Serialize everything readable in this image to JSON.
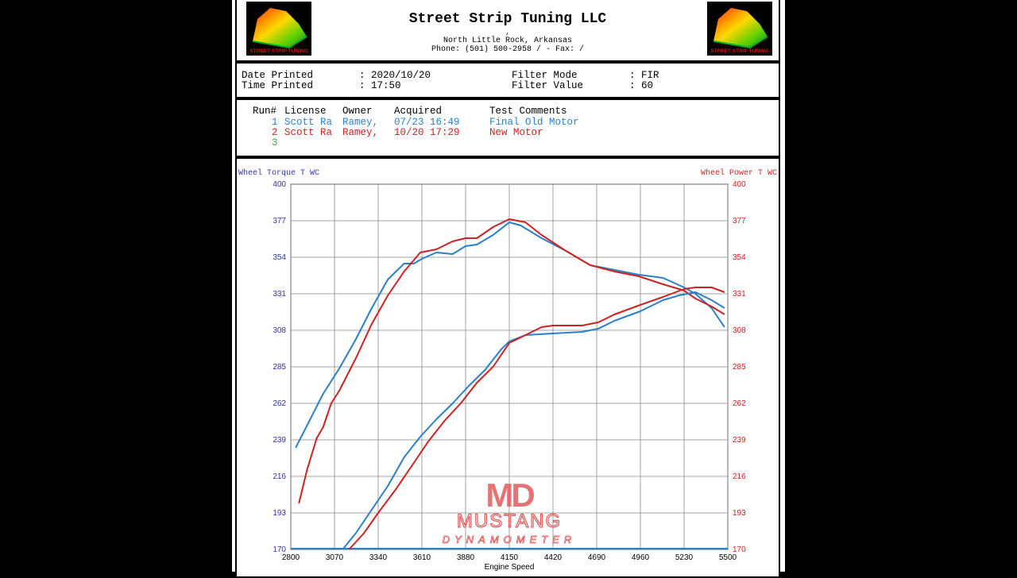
{
  "header": {
    "company": "Street Strip Tuning LLC",
    "comma": ",",
    "city": "North Little Rock, Arkansas",
    "phone": "Phone: (501) 500-2958 /  - Fax:  /",
    "logo_text": "STREET STRIP TUNING"
  },
  "info": {
    "date_label": "Date Printed",
    "date_value": ": 2020/10/20",
    "time_label": "Time Printed",
    "time_value": ": 17:50",
    "filter_mode_label": "Filter Mode",
    "filter_mode_value": ": FIR",
    "filter_value_label": "Filter Value",
    "filter_value_value": ": 60"
  },
  "runs": {
    "headers": [
      "Run#",
      "License",
      "Owner",
      "Acquired",
      "Test Comments"
    ],
    "rows": [
      {
        "num": "1",
        "license": "Scott Ra",
        "owner": "Ramey,",
        "acquired": "07/23 16:49",
        "comment": "Final Old Motor",
        "color": "#2a7fc9"
      },
      {
        "num": "2",
        "license": "Scott Ra",
        "owner": "Ramey,",
        "acquired": "10/20 17:29",
        "comment": "New Motor",
        "color": "#cc2222"
      },
      {
        "num": "3",
        "license": "",
        "owner": "",
        "acquired": "",
        "comment": "",
        "color": "#3aaa3a"
      }
    ]
  },
  "watermark": {
    "line1": "MD",
    "line2": "MUSTANG",
    "line3": "DYNAMOMETER",
    "color": "#e05a5a"
  },
  "chart_data": {
    "type": "line",
    "y_left_label": "Wheel Torque T WC",
    "y_right_label": "Wheel Power T WC",
    "xlabel": "Engine Speed",
    "xlim": [
      2800,
      5500
    ],
    "ylim": [
      170,
      400
    ],
    "x_ticks": [
      2800,
      3070,
      3340,
      3610,
      3880,
      4150,
      4420,
      4690,
      4960,
      5230,
      5500
    ],
    "y_ticks": [
      170,
      193,
      216,
      239,
      262,
      285,
      308,
      331,
      354,
      377,
      400
    ],
    "left_axis_color": "#3333bb",
    "right_axis_color": "#cc2222",
    "series": [
      {
        "color": "#2a7fc9",
        "x": [
          2830,
          2900,
          3000,
          3100,
          3200,
          3300,
          3400,
          3500,
          3560,
          3610,
          3700,
          3800,
          3880,
          3950,
          4050,
          4150,
          4220,
          4350,
          4500,
          4650,
          4800,
          4950,
          5100,
          5230,
          5300,
          5400,
          5480
        ],
        "values": [
          234,
          248,
          268,
          284,
          302,
          322,
          340,
          350,
          350,
          353,
          357,
          356,
          361,
          362,
          368,
          376,
          374,
          366,
          358,
          349,
          346,
          343,
          341,
          335,
          331,
          322,
          310
        ]
      },
      {
        "color": "#cc2222",
        "x": [
          2850,
          2900,
          2960,
          3000,
          3050,
          3100,
          3160,
          3200,
          3300,
          3400,
          3500,
          3600,
          3700,
          3800,
          3880,
          3950,
          4050,
          4150,
          4250,
          4350,
          4500,
          4650,
          4800,
          4950,
          5100,
          5230,
          5300,
          5400,
          5480
        ],
        "values": [
          199,
          220,
          240,
          247,
          262,
          270,
          282,
          290,
          312,
          330,
          345,
          357,
          359,
          364,
          366,
          366,
          373,
          378,
          376,
          368,
          358,
          349,
          345,
          342,
          337,
          333,
          328,
          323,
          318
        ]
      },
      {
        "color": "#2a7fc9",
        "x": [
          3120,
          3200,
          3300,
          3400,
          3500,
          3600,
          3700,
          3800,
          3900,
          4000,
          4100,
          4150,
          4250,
          4420,
          4600,
          4700,
          4800,
          4960,
          5100,
          5200,
          5300,
          5400,
          5480
        ],
        "values": [
          170,
          180,
          195,
          210,
          228,
          241,
          252,
          262,
          273,
          283,
          296,
          301,
          305,
          306,
          307,
          309,
          314,
          320,
          327,
          330,
          332,
          327,
          322
        ]
      },
      {
        "color": "#cc2222",
        "x": [
          3160,
          3250,
          3340,
          3450,
          3550,
          3650,
          3750,
          3850,
          3950,
          4050,
          4150,
          4250,
          4350,
          4420,
          4600,
          4700,
          4800,
          4960,
          5100,
          5230,
          5300,
          5400,
          5480
        ],
        "values": [
          170,
          180,
          193,
          208,
          223,
          238,
          251,
          262,
          275,
          285,
          300,
          305,
          310,
          311,
          311,
          313,
          318,
          324,
          329,
          334,
          335,
          335,
          332
        ]
      }
    ]
  }
}
